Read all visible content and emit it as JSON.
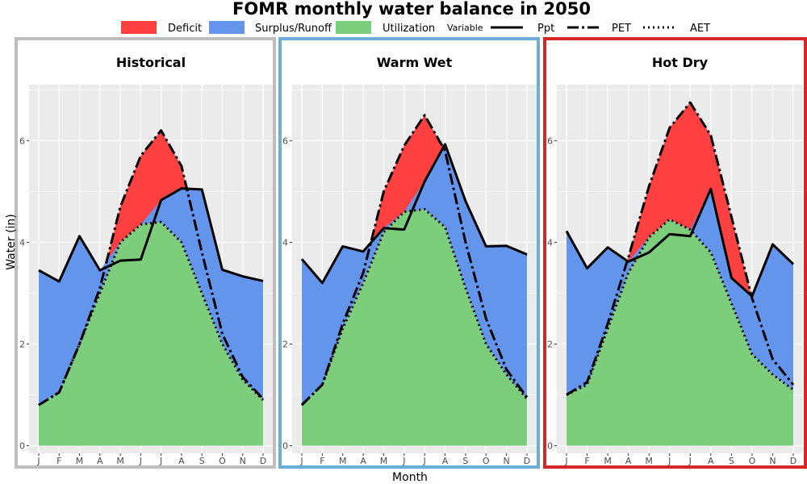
{
  "chart_data": {
    "type": "area",
    "title": "FOMR monthly water balance in 2050",
    "xlabel": "Month",
    "ylabel": "Water (in)",
    "ylim": [
      -0.15,
      7.1
    ],
    "y_ticks": [
      0,
      2,
      4,
      6
    ],
    "categories": [
      "J",
      "F",
      "M",
      "A",
      "M",
      "J",
      "J",
      "A",
      "S",
      "O",
      "N",
      "D"
    ],
    "legend": {
      "fills": [
        {
          "label": "Deficit",
          "color": "#ff4040"
        },
        {
          "label": "Surplus/Runoff",
          "color": "#6495ed"
        },
        {
          "label": "Utilization",
          "color": "#7ccd7c"
        }
      ],
      "variable_title": "Variable",
      "lines": [
        {
          "label": "Ppt",
          "style": "solid"
        },
        {
          "label": "PET",
          "style": "longdash-dot"
        },
        {
          "label": "AET",
          "style": "dotted"
        }
      ],
      "placement": "top"
    },
    "panels": [
      {
        "title": "Historical",
        "border_color": "#bebebe",
        "series": [
          {
            "name": "Ppt",
            "values": [
              3.45,
              3.23,
              4.12,
              3.45,
              3.64,
              3.66,
              4.83,
              5.06,
              5.04,
              3.46,
              3.33,
              3.24
            ]
          },
          {
            "name": "PET",
            "values": [
              0.8,
              1.05,
              2.0,
              3.1,
              4.7,
              5.7,
              6.2,
              5.5,
              3.8,
              2.2,
              1.35,
              0.92
            ]
          },
          {
            "name": "AET",
            "values": [
              0.8,
              1.05,
              2.0,
              3.0,
              4.0,
              4.35,
              4.4,
              4.0,
              3.0,
              2.0,
              1.3,
              0.9
            ]
          }
        ]
      },
      {
        "title": "Warm Wet",
        "border_color": "#6baed6",
        "series": [
          {
            "name": "Ppt",
            "values": [
              3.67,
              3.2,
              3.92,
              3.82,
              4.28,
              4.25,
              5.2,
              5.93,
              4.81,
              3.92,
              3.93,
              3.76
            ]
          },
          {
            "name": "PET",
            "values": [
              0.8,
              1.2,
              2.4,
              3.4,
              5.0,
              5.9,
              6.5,
              5.8,
              4.0,
              2.5,
              1.5,
              0.95
            ]
          },
          {
            "name": "AET",
            "values": [
              0.8,
              1.2,
              2.3,
              3.2,
              4.2,
              4.6,
              4.65,
              4.3,
              3.1,
              2.0,
              1.4,
              0.92
            ]
          }
        ]
      },
      {
        "title": "Hot Dry",
        "border_color": "#d62728",
        "series": [
          {
            "name": "Ppt",
            "values": [
              4.22,
              3.49,
              3.9,
              3.62,
              3.8,
              4.16,
              4.12,
              5.05,
              3.3,
              2.94,
              3.96,
              3.57
            ]
          },
          {
            "name": "PET",
            "values": [
              1.0,
              1.25,
              2.4,
              3.7,
              5.1,
              6.25,
              6.75,
              6.1,
              4.5,
              2.9,
              1.7,
              1.2
            ]
          },
          {
            "name": "AET",
            "values": [
              1.0,
              1.2,
              2.3,
              3.4,
              4.1,
              4.45,
              4.25,
              3.8,
              2.8,
              1.8,
              1.4,
              1.1
            ]
          }
        ]
      }
    ]
  }
}
